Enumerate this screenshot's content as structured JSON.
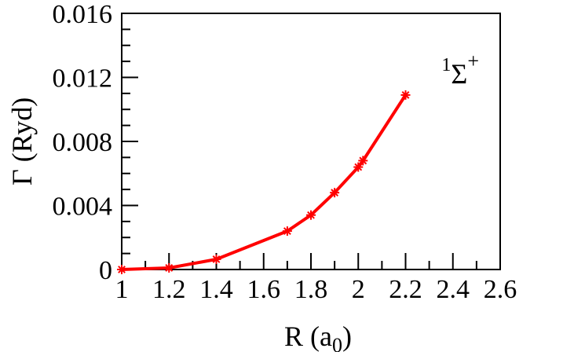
{
  "chart_data": {
    "type": "line",
    "title": "",
    "xlabel": "R (a0)",
    "xlabel_main": "R (a",
    "xlabel_sub": "0",
    "xlabel_close": ")",
    "ylabel": "Γ (Ryd)",
    "xlim": [
      1,
      2.6
    ],
    "ylim": [
      0,
      0.016
    ],
    "xticks": [
      "1",
      "1.2",
      "1.4",
      "1.6",
      "1.8",
      "2",
      "2.2",
      "2.4",
      "2.6"
    ],
    "yticks": [
      "0",
      "0.004",
      "0.008",
      "0.012",
      "0.016"
    ],
    "grid": false,
    "legend": null,
    "annotations": [
      {
        "text": "1Σ+",
        "sup_left": "1",
        "main": "Σ",
        "sup_right": "+",
        "position": "upper right"
      }
    ],
    "series": [
      {
        "name": "1Σ+",
        "color": "#ff0000",
        "marker": "asterisk",
        "x": [
          1.0,
          1.2,
          1.4,
          1.7,
          1.8,
          1.9,
          2.0,
          2.02,
          2.2
        ],
        "y": [
          0.0,
          0.0001,
          0.00064,
          0.0024,
          0.0034,
          0.0048,
          0.0064,
          0.0068,
          0.0109
        ]
      }
    ]
  },
  "colors": {
    "series": "#ff0000",
    "axis": "#000000",
    "background": "#ffffff"
  }
}
